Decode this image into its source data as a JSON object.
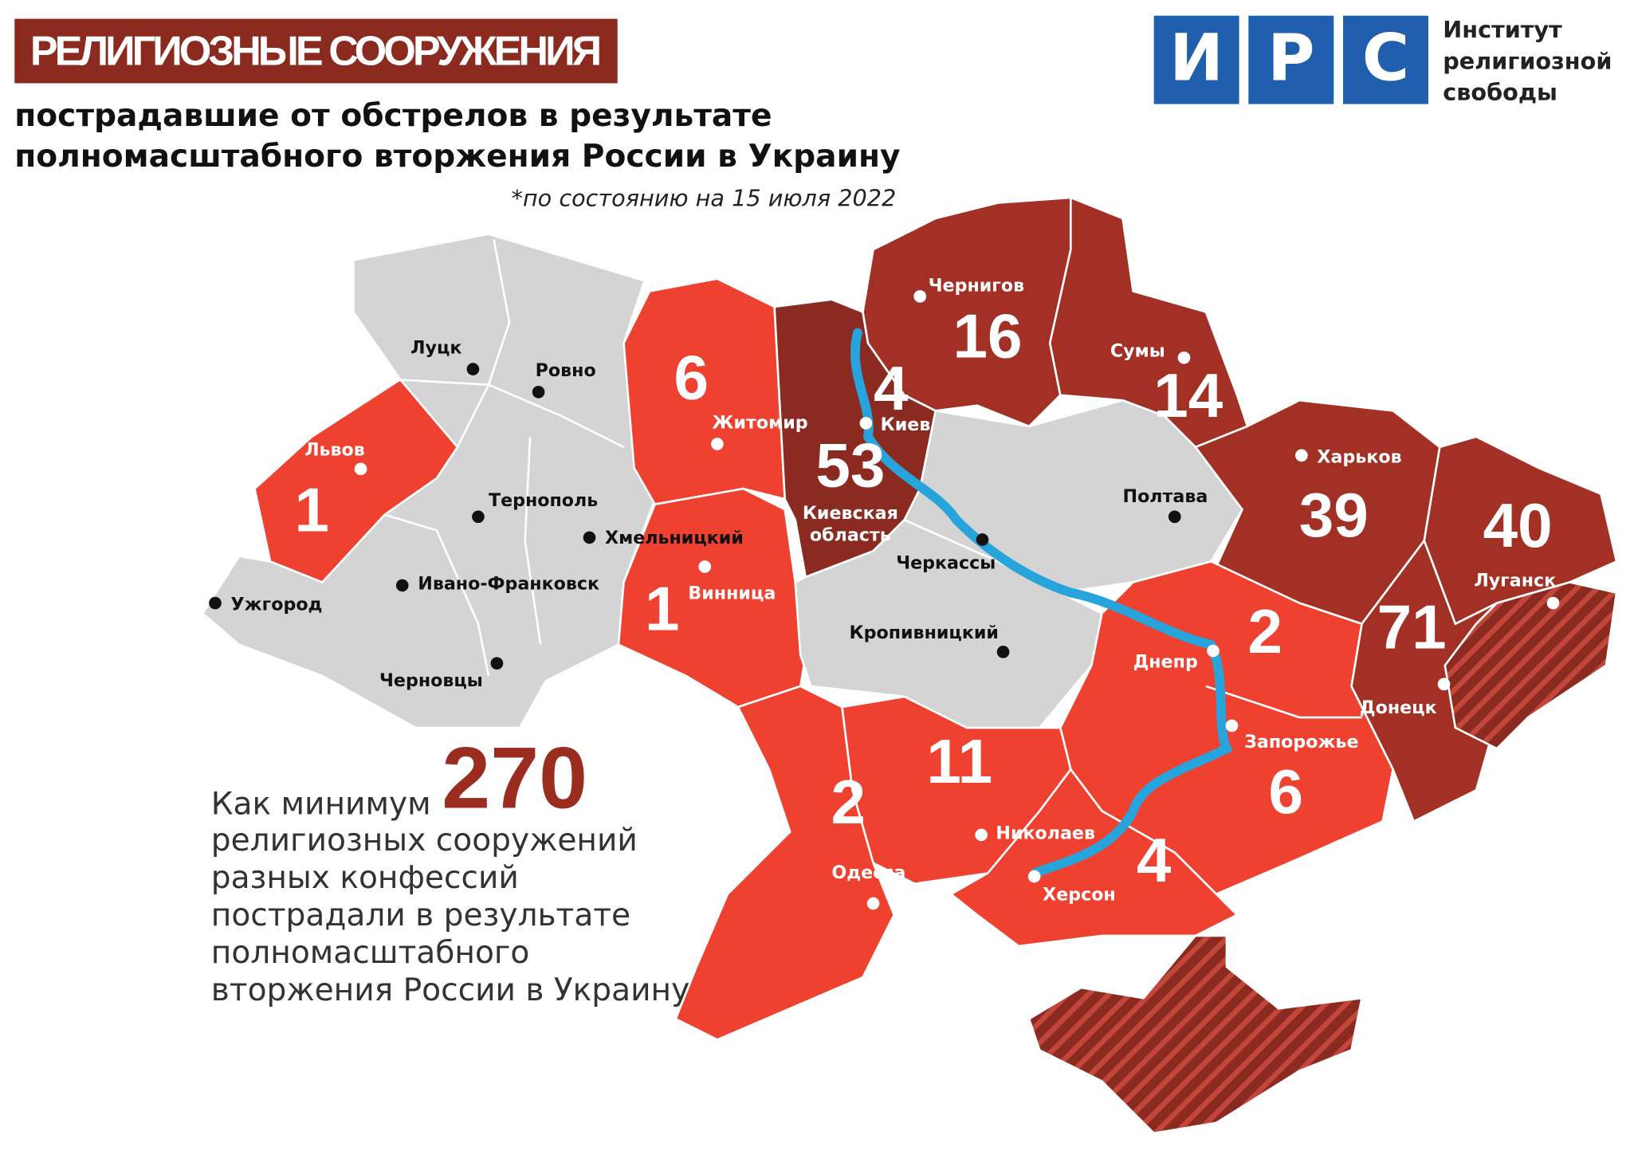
{
  "header": {
    "title": "РЕЛИГИОЗНЫЕ СООРУЖЕНИЯ",
    "subtitle_lines": [
      "пострадавшие от обстрелов в результате",
      "полномасштабного вторжения России в Украину"
    ],
    "note": "*по состоянию на 15 июля 2022"
  },
  "logo": {
    "letters": [
      "И",
      "Р",
      "С"
    ],
    "text_lines": [
      "Институт",
      "религиозной",
      "свободы"
    ]
  },
  "summary": {
    "prefix": "Как минимум",
    "total": 270,
    "lines": [
      "религиозных сооружений",
      "разных конфессий",
      "пострадали в результате",
      "полномасштабного",
      "вторжения России в Украину"
    ]
  },
  "kyiv_oblast": {
    "count": 53,
    "label_lines": [
      "Киевская",
      "область"
    ]
  },
  "regions": [
    {
      "city": "Луцк"
    },
    {
      "city": "Ровно"
    },
    {
      "city": "Львов",
      "count": 1
    },
    {
      "city": "Тернополь"
    },
    {
      "city": "Хмельницкий"
    },
    {
      "city": "Ивано-Франковск"
    },
    {
      "city": "Ужгород"
    },
    {
      "city": "Черновцы"
    },
    {
      "city": "Житомир",
      "count": 6
    },
    {
      "city": "Винница",
      "count": 1
    },
    {
      "city": "Киев",
      "count": 4
    },
    {
      "city": "Чернигов",
      "count": 16
    },
    {
      "city": "Сумы",
      "count": 14
    },
    {
      "city": "Полтава"
    },
    {
      "city": "Черкассы"
    },
    {
      "city": "Кропивницкий"
    },
    {
      "city": "Харьков",
      "count": 39
    },
    {
      "city": "Луганск",
      "count": 40
    },
    {
      "city": "Донецк",
      "count": 71
    },
    {
      "city": "Днепр",
      "count": 2
    },
    {
      "city": "Запорожье",
      "count": 6
    },
    {
      "city": "Херсон",
      "count": 4
    },
    {
      "city": "Николаев",
      "count": 11
    },
    {
      "city": "Одесса",
      "count": 2
    }
  ]
}
